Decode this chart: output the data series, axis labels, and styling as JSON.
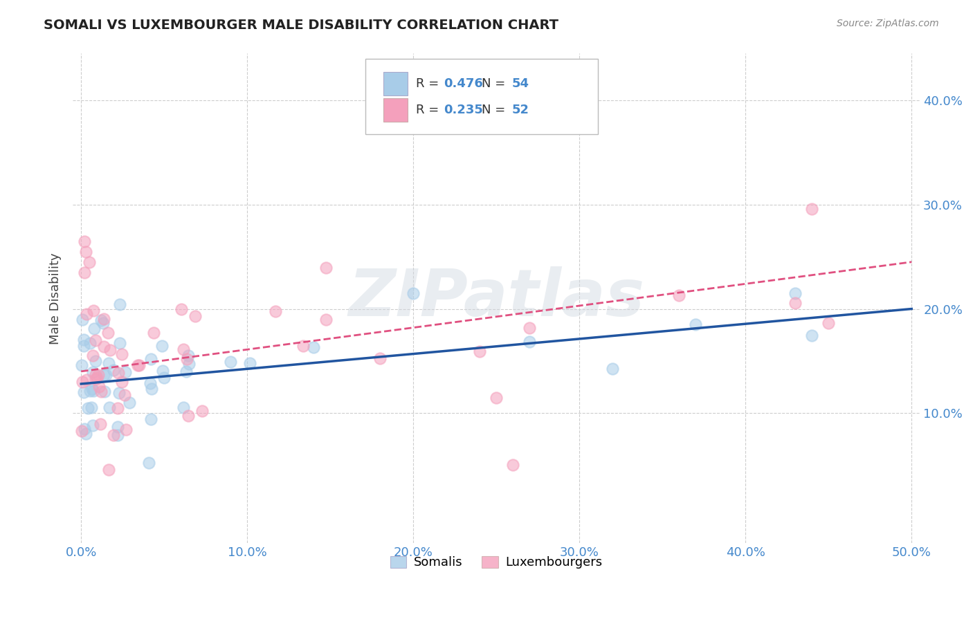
{
  "title": "SOMALI VS LUXEMBOURGER MALE DISABILITY CORRELATION CHART",
  "source": "Source: ZipAtlas.com",
  "xlabel_ticks": [
    "0.0%",
    "10.0%",
    "20.0%",
    "30.0%",
    "40.0%",
    "50.0%"
  ],
  "xlabel_vals": [
    0.0,
    0.1,
    0.2,
    0.3,
    0.4,
    0.5
  ],
  "ylabel": "Male Disability",
  "ylabel_ticks": [
    "10.0%",
    "20.0%",
    "30.0%",
    "40.0%"
  ],
  "ylabel_vals": [
    0.1,
    0.2,
    0.3,
    0.4
  ],
  "xlim": [
    -0.005,
    0.505
  ],
  "ylim": [
    -0.025,
    0.445
  ],
  "somali_R": 0.476,
  "somali_N": 54,
  "luxembourger_R": 0.235,
  "luxembourger_N": 52,
  "somali_color": "#a8cce8",
  "luxembourger_color": "#f4a0bc",
  "somali_line_color": "#2155a0",
  "luxembourger_line_color": "#e05080",
  "background_color": "#ffffff",
  "grid_color": "#c8c8c8",
  "title_color": "#222222",
  "axis_label_color": "#4488cc",
  "watermark": "ZIPatlas",
  "somali_line_y0": 0.128,
  "somali_line_y1": 0.2,
  "luxembourger_line_y0": 0.14,
  "luxembourger_line_y1": 0.245
}
